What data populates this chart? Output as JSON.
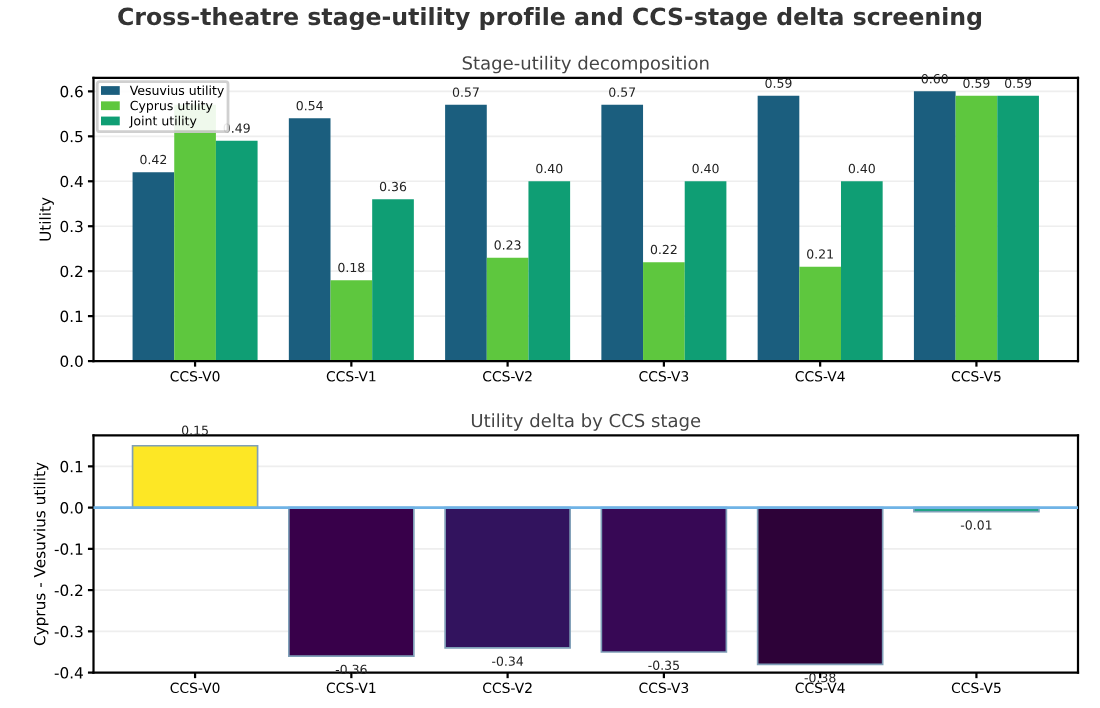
{
  "chart_data": [
    {
      "type": "bar",
      "title": "Cross-theatre stage-utility profile and CCS-stage delta screening",
      "subtitle": "Stage-utility decomposition",
      "ylabel": "Utility",
      "categories": [
        "CCS-V0",
        "CCS-V1",
        "CCS-V2",
        "CCS-V3",
        "CCS-V4",
        "CCS-V5"
      ],
      "series": [
        {
          "name": "Vesuvius utility",
          "color": "#1b5e7e",
          "values": [
            0.42,
            0.54,
            0.57,
            0.57,
            0.59,
            0.6
          ],
          "value_labels": [
            "0.42",
            "0.54",
            "0.57",
            "0.57",
            "0.59",
            "0.60"
          ]
        },
        {
          "name": "Cyprus utility",
          "color": "#5ec73e",
          "values": [
            0.57,
            0.18,
            0.23,
            0.22,
            0.21,
            0.59
          ],
          "value_labels": [
            null,
            "0.18",
            "0.23",
            "0.22",
            "0.21",
            "0.59"
          ]
        },
        {
          "name": "Joint utility",
          "color": "#0f9e74",
          "values": [
            0.49,
            0.36,
            0.4,
            0.4,
            0.4,
            0.59
          ],
          "value_labels": [
            "0.49",
            "0.36",
            "0.40",
            "0.40",
            "0.40",
            "0.59"
          ]
        }
      ],
      "ylim": [
        0,
        0.63
      ],
      "yticks": [
        {
          "value": 0,
          "label": "0.0"
        },
        0.1,
        0.2,
        0.3,
        0.4,
        0.5,
        0.6
      ],
      "grid": "y",
      "legend": "top left"
    },
    {
      "type": "bar",
      "title": "Utility delta by CCS stage",
      "ylabel": "Cyprus - Vesuvius utility",
      "categories": [
        "CCS-V0",
        "CCS-V1",
        "CCS-V2",
        "CCS-V3",
        "CCS-V4",
        "CCS-V5"
      ],
      "values": [
        0.15,
        -0.36,
        -0.34,
        -0.35,
        -0.38,
        -0.01
      ],
      "colors": [
        "#fde725",
        "#38004a",
        "#32135e",
        "#370855",
        "#2d0238",
        "#21a386"
      ],
      "value_labels": [
        "0.15",
        "-0.36",
        "-0.34",
        "-0.35",
        "-0.38",
        "-0.01"
      ],
      "ylim": [
        -0.4,
        0.175
      ],
      "yticks": [
        -0.4,
        -0.3,
        -0.2,
        -0.1,
        {
          "value": 0,
          "label": "0.0"
        },
        0.1
      ],
      "grid": "y",
      "ref_lines": [
        {
          "axis": "y",
          "value": 0,
          "color": "#6fb3e6"
        }
      ]
    }
  ]
}
